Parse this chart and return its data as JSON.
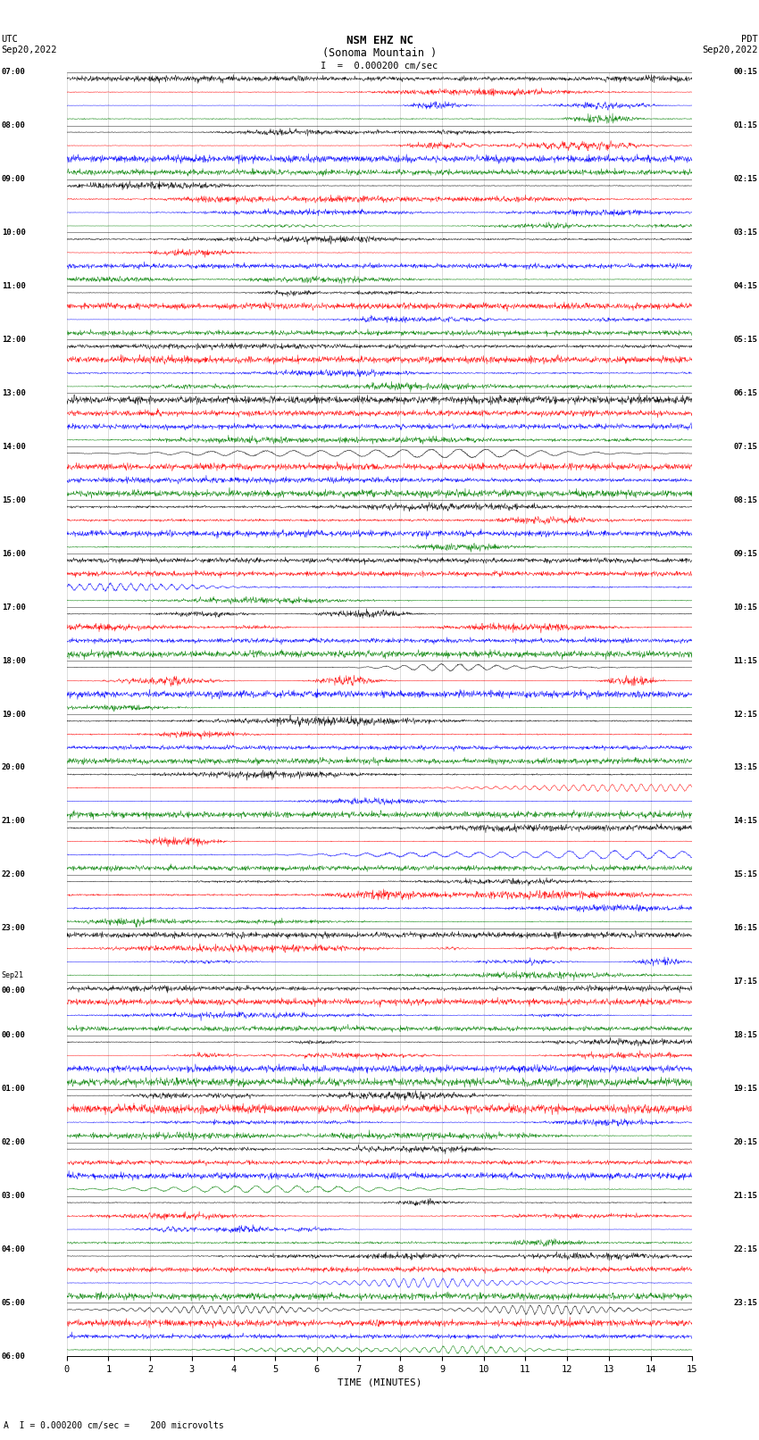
{
  "title_line1": "NSM EHZ NC",
  "title_line2": "(Sonoma Mountain )",
  "title_line3": "I  =  0.000200 cm/sec",
  "label_left_top": "UTC",
  "label_left_date": "Sep20,2022",
  "label_right_top": "PDT",
  "label_right_date": "Sep20,2022",
  "xlabel": "TIME (MINUTES)",
  "footer": "A  I = 0.000200 cm/sec =    200 microvolts",
  "left_times_hourly": [
    "07:00",
    "08:00",
    "09:00",
    "10:00",
    "11:00",
    "12:00",
    "13:00",
    "14:00",
    "15:00",
    "16:00",
    "17:00",
    "18:00",
    "19:00",
    "20:00",
    "21:00",
    "22:00",
    "23:00",
    "Sep21",
    "00:00",
    "01:00",
    "02:00",
    "03:00",
    "04:00",
    "05:00",
    "06:00"
  ],
  "right_times_hourly": [
    "00:15",
    "01:15",
    "02:15",
    "03:15",
    "04:15",
    "05:15",
    "06:15",
    "07:15",
    "08:15",
    "09:15",
    "10:15",
    "11:15",
    "12:15",
    "13:15",
    "14:15",
    "15:15",
    "16:15",
    "17:15",
    "18:15",
    "19:15",
    "20:15",
    "21:15",
    "22:15",
    "23:15"
  ],
  "trace_colors": [
    "black",
    "red",
    "blue",
    "green"
  ],
  "n_rows": 96,
  "n_minutes": 15,
  "bg_color": "white",
  "grid_color": "#888888",
  "sep21_row": 68
}
